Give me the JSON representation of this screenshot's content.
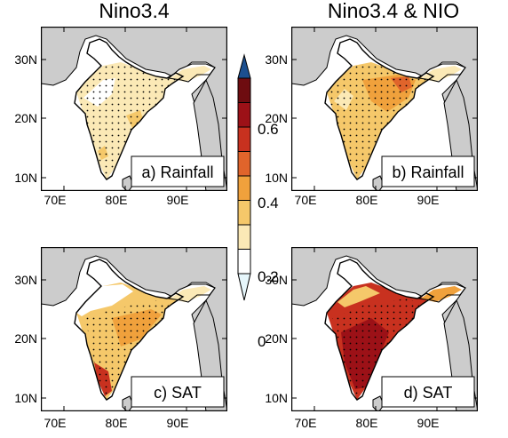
{
  "columns": [
    "Nino3.4",
    "Nino3.4 & NIO"
  ],
  "panels": [
    {
      "label": "a) Rainfall",
      "variable": "Rainfall",
      "predictor": "Nino3.4",
      "position": "top-left",
      "dominant_level": 1
    },
    {
      "label": "b) Rainfall",
      "variable": "Rainfall",
      "predictor": "Nino3.4 & NIO",
      "position": "top-right",
      "dominant_level": 3
    },
    {
      "label": "c) SAT",
      "variable": "SAT",
      "predictor": "Nino3.4",
      "position": "bottom-left",
      "dominant_level": 2
    },
    {
      "label": "d) SAT",
      "variable": "SAT",
      "predictor": "Nino3.4 & NIO",
      "position": "bottom-right",
      "dominant_level": 5
    }
  ],
  "lat_labels": [
    "30N",
    "20N",
    "10N"
  ],
  "lon_labels": [
    "70E",
    "80E",
    "90E"
  ],
  "colorbar": {
    "labels": [
      "0.6",
      "0.4",
      "0.2",
      "0"
    ],
    "levels": [
      -0.1,
      0,
      0.1,
      0.2,
      0.3,
      0.4,
      0.5,
      0.6,
      0.7
    ],
    "colors": [
      "#e6f6fb",
      "#ffffff",
      "#fbe9b6",
      "#f5c86a",
      "#f0a13c",
      "#e0642b",
      "#c8311f",
      "#9c1117",
      "#6e0c10",
      "#1c4f8f"
    ]
  },
  "colors": {
    "land": "#ffffff",
    "sea_land_other": "#cccccc",
    "stipple": "#000000"
  }
}
